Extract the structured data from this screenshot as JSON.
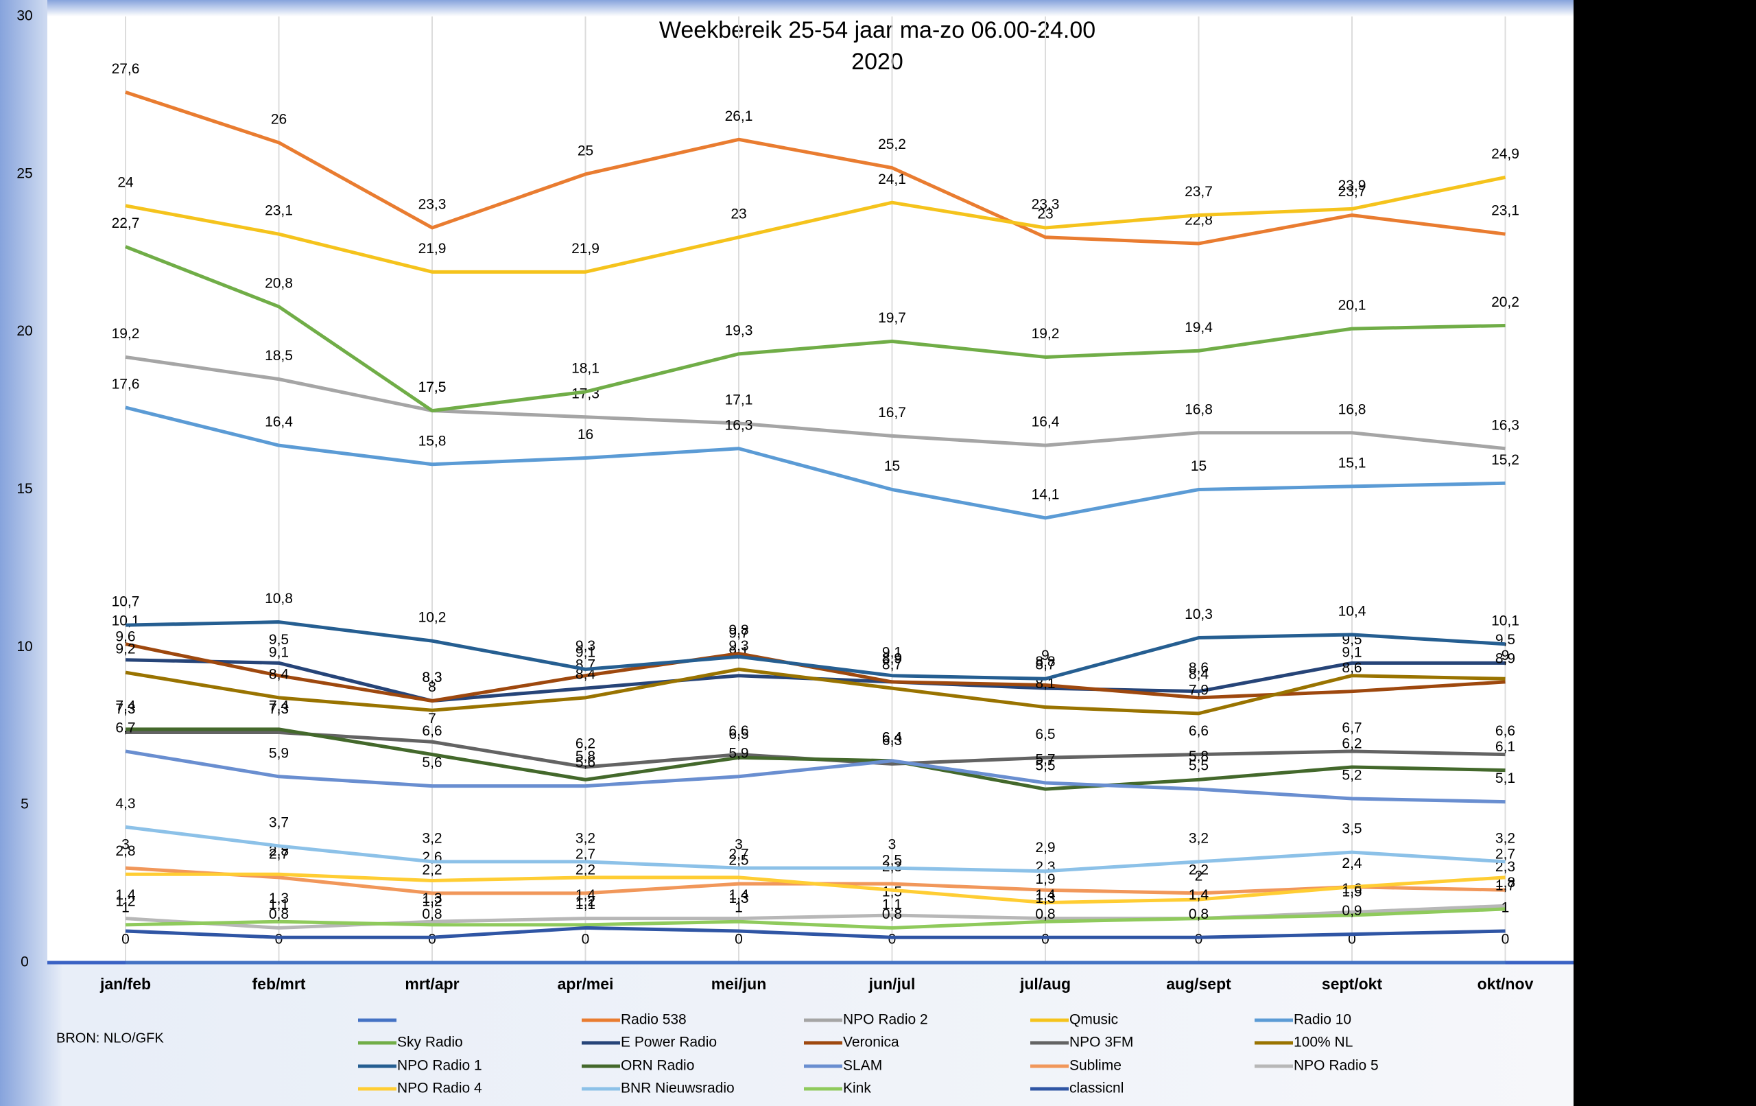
{
  "chart_data": {
    "type": "line",
    "title": "Weekbereik 25-54 jaar ma-zo 06.00-24.00",
    "subtitle": "2020",
    "source": "BRON: NLO/GFK",
    "categories": [
      "jan/feb",
      "feb/mrt",
      "mrt/apr",
      "apr/mei",
      "mei/jun",
      "jun/jul",
      "jul/aug",
      "aug/sept",
      "sept/okt",
      "okt/nov"
    ],
    "ylim": [
      0,
      30
    ],
    "yticks": [
      0,
      5,
      10,
      15,
      20,
      25,
      30
    ],
    "grid": true,
    "series": [
      {
        "color": "#4472c4",
        "values": [
          0,
          0,
          0,
          0,
          0,
          0,
          0,
          0,
          0,
          0
        ]
      },
      {
        "name": "Radio 538",
        "color": "#e97c30",
        "values": [
          27.6,
          26,
          23.3,
          25,
          26.1,
          25.2,
          23,
          22.8,
          23.7,
          23.1
        ],
        "value_labels": [
          "27,6",
          "26",
          "23,3",
          "25",
          "26,1",
          "25,2",
          "23",
          "22,8",
          "23,7",
          "23,1"
        ]
      },
      {
        "name": "NPO Radio 2",
        "color": "#a5a5a5",
        "values": [
          19.2,
          18.5,
          17.5,
          17.3,
          17.1,
          16.7,
          16.4,
          16.8,
          16.8,
          16.3
        ],
        "value_labels": [
          "19,2",
          "18,5",
          "17,5",
          "17,3",
          "17,1",
          "16,7",
          "16,4",
          "16,8",
          "16,8",
          "16,3"
        ]
      },
      {
        "name": "Qmusic",
        "color": "#f5c31c",
        "values": [
          24,
          23.1,
          21.9,
          21.9,
          23,
          24.1,
          23.3,
          23.7,
          23.9,
          24.9
        ],
        "value_labels": [
          "24",
          "23,1",
          "21,9",
          "21,9",
          "23",
          "24,1",
          "23,3",
          "23,7",
          "23,9",
          "24,9"
        ]
      },
      {
        "name": "Radio 10",
        "color": "#5b9bd5",
        "values": [
          17.6,
          16.4,
          15.8,
          16,
          16.3,
          15,
          14.1,
          15,
          15.1,
          15.2
        ],
        "value_labels": [
          "17,6",
          "16,4",
          "15,8",
          "16",
          "16,3",
          "15",
          "14,1",
          "15",
          "15,1",
          "15,2"
        ]
      },
      {
        "name": "Sky Radio",
        "color": "#70ad47",
        "values": [
          22.7,
          20.8,
          17.5,
          18.1,
          19.3,
          19.7,
          19.2,
          19.4,
          20.1,
          20.2
        ],
        "value_labels": [
          "22,7",
          "20,8",
          "17,5",
          "18,1",
          "19,3",
          "19,7",
          "19,2",
          "19,4",
          "20,1",
          "20,2"
        ]
      },
      {
        "name": "E Power Radio",
        "color": "#264478",
        "values": [
          9.6,
          9.5,
          8.3,
          8.7,
          9.1,
          8.9,
          8.7,
          8.6,
          9.5,
          9.5
        ],
        "value_labels": [
          "9,6",
          "9,5",
          "8,3",
          "8,7",
          "9,1",
          "8,9",
          "8,7",
          "8,6",
          "9,5",
          "9,5"
        ]
      },
      {
        "name": "Veronica",
        "color": "#9e480e",
        "values": [
          10.1,
          9.1,
          8.3,
          9.1,
          9.8,
          8.9,
          8.8,
          8.4,
          8.6,
          8.9
        ],
        "value_labels": [
          "10,1",
          "9,1",
          "8,3",
          "9,1",
          "9,8",
          "8,9",
          "8,8",
          "8,4",
          "8,6",
          "8,9"
        ]
      },
      {
        "name": "NPO 3FM",
        "color": "#636363",
        "values": [
          7.3,
          7.3,
          7,
          6.2,
          6.6,
          6.3,
          6.5,
          6.6,
          6.7,
          6.6
        ],
        "value_labels": [
          "7,3",
          "7,3",
          "7",
          "6,2",
          "6,6",
          "6,3",
          "6,5",
          "6,6",
          "6,7",
          "6,6"
        ]
      },
      {
        "name": "100% NL",
        "color": "#997300",
        "values": [
          9.2,
          8.4,
          8,
          8.4,
          9.3,
          8.7,
          8.1,
          7.9,
          9.1,
          9
        ],
        "value_labels": [
          "9,2",
          "8,4",
          "8",
          "8,4",
          "9,3",
          "8,7",
          "8,1",
          "7,9",
          "9,1",
          "9"
        ]
      },
      {
        "name": "NPO Radio 1",
        "color": "#255e91",
        "values": [
          10.7,
          10.8,
          10.2,
          9.3,
          9.7,
          9.1,
          9,
          10.3,
          10.4,
          10.1
        ],
        "value_labels": [
          "10,7",
          "10,8",
          "10,2",
          "9,3",
          "9,7",
          "9,1",
          "9",
          "10,3",
          "10,4",
          "10,1"
        ]
      },
      {
        "name": "ORN Radio",
        "color": "#43682b",
        "values": [
          7.4,
          7.4,
          6.6,
          5.8,
          6.5,
          6.4,
          5.5,
          5.8,
          6.2,
          6.1
        ],
        "value_labels": [
          "7,4",
          "7,4",
          "6,6",
          "5,8",
          "6,5",
          "6,4",
          "5,5",
          "5,8",
          "6,2",
          "6,1"
        ]
      },
      {
        "name": "SLAM",
        "color": "#698ed0",
        "values": [
          6.7,
          5.9,
          5.6,
          5.6,
          5.9,
          6.4,
          5.7,
          5.5,
          5.2,
          5.1
        ],
        "value_labels": [
          "6,7",
          "5,9",
          "5,6",
          "5,6",
          "5,9",
          "6,4",
          "5,7",
          "5,5",
          "5,2",
          "5,1"
        ]
      },
      {
        "name": "Sublime",
        "color": "#f1975a",
        "values": [
          3,
          2.7,
          2.2,
          2.2,
          2.5,
          2.5,
          2.3,
          2.2,
          2.4,
          2.3
        ],
        "value_labels": [
          "3",
          "2,7",
          "2,2",
          "2,2",
          "2,5",
          "2,5",
          "2,3",
          "2,2",
          "2,4",
          "2,3"
        ]
      },
      {
        "name": "NPO Radio 5",
        "color": "#b7b7b7",
        "values": [
          1.4,
          1.1,
          1.3,
          1.4,
          1.4,
          1.5,
          1.4,
          1.4,
          1.6,
          1.8
        ],
        "value_labels": [
          "1,4",
          "1,1",
          "1,3",
          "1,4",
          "1,4",
          "1,5",
          "1,4",
          "1,4",
          "1,6",
          "1,8"
        ]
      },
      {
        "name": "NPO Radio 4",
        "color": "#ffcd33",
        "values": [
          2.8,
          2.8,
          2.6,
          2.7,
          2.7,
          2.3,
          1.9,
          2,
          2.4,
          2.7
        ],
        "value_labels": [
          "2,8",
          "2,8",
          "2,6",
          "2,7",
          "2,7",
          "2,3",
          "1,9",
          "2",
          "2,4",
          "2,7"
        ]
      },
      {
        "name": "BNR Nieuwsradio",
        "color": "#8cc1e8",
        "values": [
          4.3,
          3.7,
          3.2,
          3.2,
          3,
          3,
          2.9,
          3.2,
          3.5,
          3.2
        ],
        "value_labels": [
          "4,3",
          "3,7",
          "3,2",
          "3,2",
          "3",
          "3",
          "2,9",
          "3,2",
          "3,5",
          "3,2"
        ]
      },
      {
        "name": "Kink",
        "color": "#8fca5c",
        "values": [
          1.2,
          1.3,
          1.2,
          1.2,
          1.3,
          1.1,
          1.3,
          1.4,
          1.5,
          1.7
        ],
        "value_labels": [
          "1,2",
          "1,3",
          "1,2",
          "1,2",
          "1,3",
          "1,1",
          "1,3",
          "1,4",
          "1,5",
          "1,7"
        ]
      },
      {
        "name": "classicnl",
        "color": "#2f55a4",
        "values": [
          1,
          0.8,
          0.8,
          1.1,
          1,
          0.8,
          0.8,
          0.8,
          0.9,
          1
        ],
        "value_labels": [
          "1",
          "0,8",
          "0,8",
          "1,1",
          "1",
          "0,8",
          "0,8",
          "0,8",
          "0,9",
          "1"
        ]
      }
    ]
  }
}
